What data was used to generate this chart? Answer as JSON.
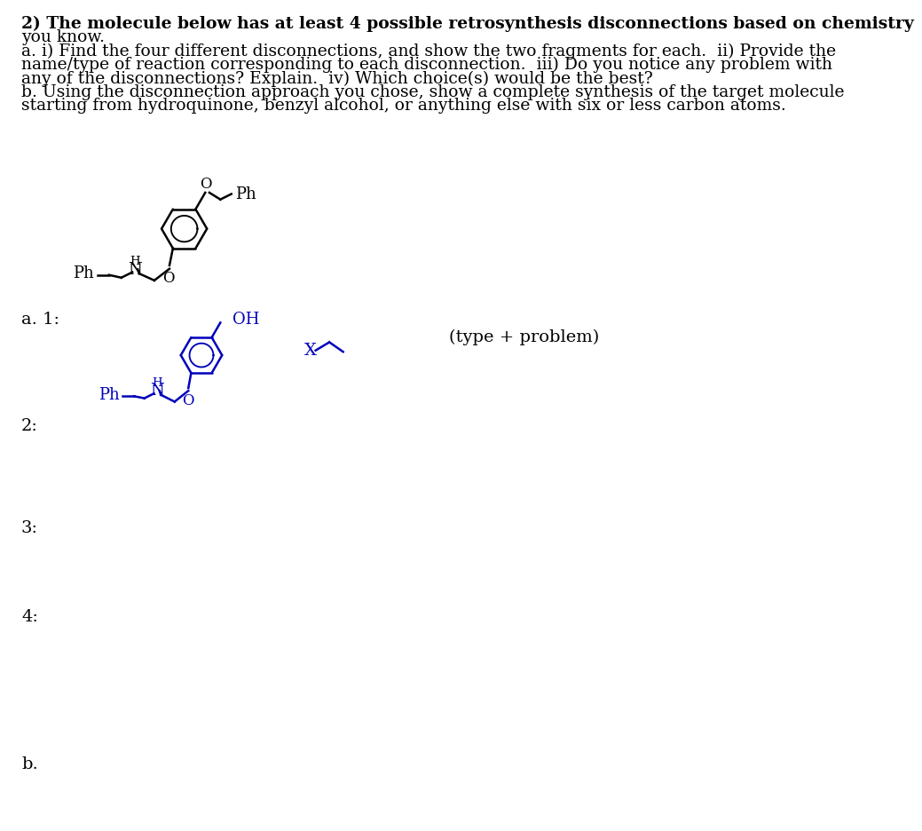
{
  "background_color": "#ffffff",
  "text_color_black": "#000000",
  "text_color_blue": "#0000bb",
  "label_a1": "a. 1:",
  "label_2": "2:",
  "label_3": "3:",
  "label_4": "4:",
  "label_b": "b.",
  "type_problem_text": "(type + problem)",
  "question_lines": [
    "2) The molecule below has at least 4 possible retrosynthesis disconnections based on chemistry",
    "you know.",
    "a. i) Find the four different disconnections, and show the two fragments for each.  ii) Provide the",
    "name/type of reaction corresponding to each disconnection.  iii) Do you notice any problem with",
    "any of the disconnections? Explain.  iv) Which choice(s) would be the best?",
    "b. Using the disconnection approach you chose, show a complete synthesis of the target molecule",
    "starting from hydroquinone, benzyl alcohol, or anything else with six or less carbon atoms."
  ]
}
